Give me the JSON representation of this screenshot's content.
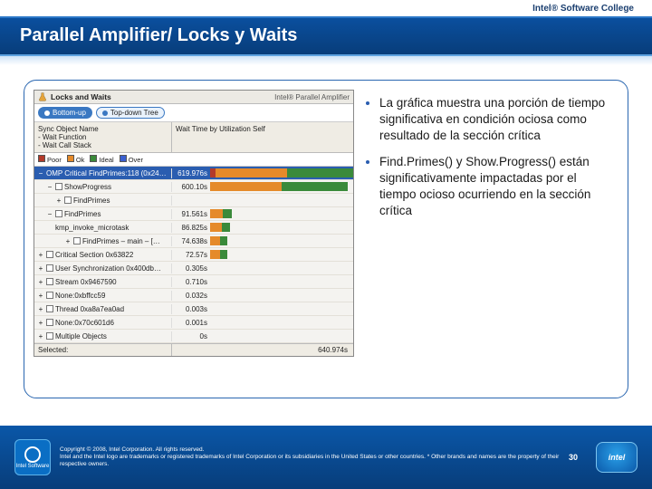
{
  "brand_tag": "Intel® Software College",
  "slide_title": "Parallel Amplifier/ Locks y Waits",
  "legal": {
    "line1": "Copyright © 2008, Intel Corporation. All rights reserved.",
    "line2": "Intel and the Intel logo are trademarks or registered trademarks of Intel Corporation or its subsidiaries in the United States or other countries. * Other brands and names are the property of their respective owners.",
    "page_number": "30",
    "badge_text": "Intel Software",
    "logo_text": "intel"
  },
  "bullets": [
    "La gráfica muestra una porción de tiempo significativa en condición ociosa como resultado de la sección crítica",
    "Find.Primes() y Show.Progress() están significativamente impactadas por el tiempo ocioso ocurriendo en la sección crítica"
  ],
  "panel": {
    "window_title": "Locks and Waits",
    "window_sub": "Intel® Parallel Amplifier",
    "views": {
      "bottom_up": "Bottom-up",
      "top_down": "Top-down Tree"
    },
    "columns": {
      "c1": "Sync Object Name\n  - Wait Function\n    - Wait Call Stack",
      "c2": "Wait Time by Utilization Self"
    },
    "legend": {
      "poor": "Poor",
      "ok": "Ok",
      "ideal": "Ideal",
      "over": "Over"
    },
    "colors": {
      "poor": "#b33a2a",
      "ok": "#e58a2a",
      "ideal": "#3a8a3a",
      "over": "#3a5fd0",
      "sel": "#2a5db0"
    },
    "rows": [
      {
        "name": "OMP Critical FindPrimes:118 (0x24…",
        "time": "619.976s",
        "indent": 0,
        "expand": "−",
        "selected": true,
        "check": false,
        "bar": [
          [
            "poor",
            0,
            4
          ],
          [
            "ok",
            4,
            54
          ],
          [
            "ideal",
            54,
            100
          ]
        ]
      },
      {
        "name": "ShowProgress",
        "time": "600.10s",
        "indent": 1,
        "expand": "−",
        "check": true,
        "bar": [
          [
            "ok",
            0,
            50
          ],
          [
            "ideal",
            50,
            96
          ]
        ]
      },
      {
        "name": "FindPrimes",
        "time": "",
        "indent": 2,
        "expand": "+",
        "check": true,
        "bar": []
      },
      {
        "name": "FindPrimes",
        "time": "91.561s",
        "indent": 1,
        "expand": "−",
        "check": true,
        "bar": [
          [
            "ok",
            0,
            9
          ],
          [
            "ideal",
            9,
            15
          ]
        ]
      },
      {
        "name": "kmp_invoke_microtask",
        "time": "86.825s",
        "indent": 2,
        "expand": "",
        "check": false,
        "bar": [
          [
            "ok",
            0,
            8
          ],
          [
            "ideal",
            8,
            14
          ]
        ]
      },
      {
        "name": "FindPrimes – main – […",
        "time": "74.638s",
        "indent": 3,
        "expand": "+",
        "check": true,
        "bar": [
          [
            "ok",
            0,
            7
          ],
          [
            "ideal",
            7,
            12
          ]
        ]
      },
      {
        "name": "Critical Section 0x63822",
        "time": "72.57s",
        "indent": 0,
        "expand": "+",
        "check": true,
        "bar": [
          [
            "ok",
            0,
            7
          ],
          [
            "ideal",
            7,
            12
          ]
        ]
      },
      {
        "name": "User Synchronization 0x400db…",
        "time": "0.305s",
        "indent": 0,
        "expand": "+",
        "check": true,
        "bar": []
      },
      {
        "name": "Stream 0x9467590",
        "time": "0.710s",
        "indent": 0,
        "expand": "+",
        "check": true,
        "bar": []
      },
      {
        "name": "None:0xbffcc59",
        "time": "0.032s",
        "indent": 0,
        "expand": "+",
        "check": true,
        "bar": []
      },
      {
        "name": "Thread 0xa8a7ea0ad",
        "time": "0.003s",
        "indent": 0,
        "expand": "+",
        "check": true,
        "bar": []
      },
      {
        "name": "None:0x70c601d6",
        "time": "0.001s",
        "indent": 0,
        "expand": "+",
        "check": true,
        "bar": []
      },
      {
        "name": "Multiple Objects",
        "time": "0s",
        "indent": 0,
        "expand": "+",
        "check": true,
        "bar": []
      }
    ],
    "footer": {
      "left": "Selected:",
      "right": "640.974s"
    }
  }
}
